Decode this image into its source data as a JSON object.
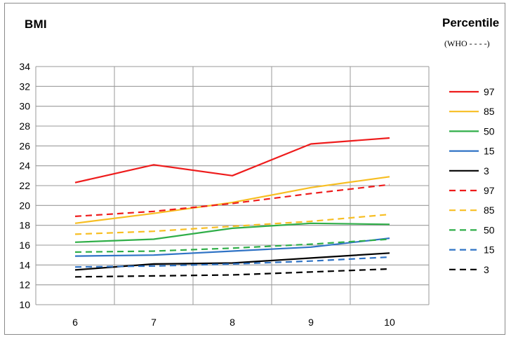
{
  "chart_data": {
    "type": "line",
    "ylabel": "BMI",
    "legend_title": "Percentile",
    "legend_subtitle": "(WHO - - - -)",
    "legend_position": "right",
    "grid": "horizontal",
    "x": [
      "6",
      "7",
      "8",
      "9",
      "10"
    ],
    "ylim": [
      10,
      34
    ],
    "yticks": [
      "10",
      "12",
      "14",
      "16",
      "18",
      "20",
      "22",
      "24",
      "26",
      "28",
      "30",
      "32",
      "34"
    ],
    "series": [
      {
        "name": "97",
        "color": "#ee1c1c",
        "dashed": false,
        "values": [
          22.3,
          24.1,
          23.0,
          26.2,
          26.8
        ]
      },
      {
        "name": "85",
        "color": "#f7be22",
        "dashed": false,
        "values": [
          18.2,
          19.2,
          20.3,
          21.8,
          22.9
        ]
      },
      {
        "name": "50",
        "color": "#2fae48",
        "dashed": false,
        "values": [
          16.3,
          16.6,
          17.7,
          18.2,
          18.1
        ]
      },
      {
        "name": "15",
        "color": "#2f73c5",
        "dashed": false,
        "values": [
          14.9,
          15.0,
          15.4,
          15.8,
          16.7
        ]
      },
      {
        "name": "3",
        "color": "#000000",
        "dashed": false,
        "values": [
          13.5,
          14.1,
          14.2,
          14.7,
          15.2
        ]
      },
      {
        "name": "97",
        "color": "#ee1c1c",
        "dashed": true,
        "values": [
          18.9,
          19.4,
          20.2,
          21.2,
          22.1
        ]
      },
      {
        "name": "85",
        "color": "#f7be22",
        "dashed": true,
        "values": [
          17.1,
          17.4,
          17.9,
          18.4,
          19.1
        ]
      },
      {
        "name": "50",
        "color": "#2fae48",
        "dashed": true,
        "values": [
          15.3,
          15.4,
          15.7,
          16.1,
          16.6
        ]
      },
      {
        "name": "15",
        "color": "#2f73c5",
        "dashed": true,
        "values": [
          13.8,
          13.9,
          14.1,
          14.4,
          14.8
        ]
      },
      {
        "name": "3",
        "color": "#000000",
        "dashed": true,
        "values": [
          12.8,
          12.9,
          13.0,
          13.3,
          13.6
        ]
      }
    ]
  }
}
